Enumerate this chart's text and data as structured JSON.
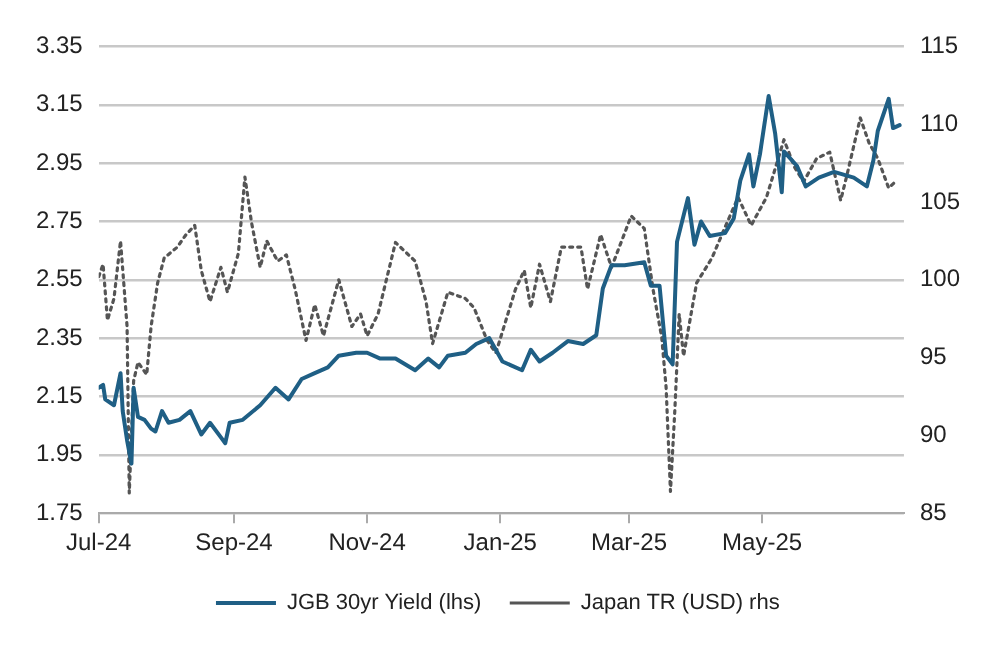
{
  "chart_data": {
    "type": "line",
    "xlim": [
      "2024-07-01",
      "2025-07-05"
    ],
    "xticks": [
      {
        "value": "2024-07-01",
        "label": "Jul-24"
      },
      {
        "value": "2024-09-01",
        "label": "Sep-24"
      },
      {
        "value": "2024-11-01",
        "label": "Nov-24"
      },
      {
        "value": "2025-01-01",
        "label": "Jan-25"
      },
      {
        "value": "2025-03-01",
        "label": "Mar-25"
      },
      {
        "value": "2025-05-01",
        "label": "May-25"
      }
    ],
    "ylim": [
      1.75,
      3.35
    ],
    "yticks": [
      1.75,
      1.95,
      2.15,
      2.35,
      2.55,
      2.75,
      2.95,
      3.15,
      3.35
    ],
    "y2lim": [
      85,
      115
    ],
    "y2ticks": [
      85,
      90,
      95,
      100,
      105,
      110,
      115
    ],
    "grid": "y",
    "legend": "bottom",
    "marker": "none",
    "series": [
      {
        "name": "JGB 30yr Yield (lhs)",
        "color": "#1f5f85",
        "line_style": "solid",
        "x": [
          "2024-07-01",
          "2024-07-03",
          "2024-07-04",
          "2024-07-08",
          "2024-07-11",
          "2024-07-12",
          "2024-07-14",
          "2024-07-16",
          "2024-07-17",
          "2024-07-19",
          "2024-07-22",
          "2024-07-25",
          "2024-07-27",
          "2024-07-30",
          "2024-08-02",
          "2024-08-07",
          "2024-08-12",
          "2024-08-17",
          "2024-08-21",
          "2024-08-26",
          "2024-08-28",
          "2024-08-30",
          "2024-09-05",
          "2024-09-13",
          "2024-09-20",
          "2024-09-26",
          "2024-10-02",
          "2024-10-08",
          "2024-10-14",
          "2024-10-19",
          "2024-10-27",
          "2024-11-01",
          "2024-11-07",
          "2024-11-14",
          "2024-11-23",
          "2024-11-29",
          "2024-12-04",
          "2024-12-08",
          "2024-12-16",
          "2024-12-21",
          "2024-12-27",
          "2025-01-02",
          "2025-01-11",
          "2025-01-15",
          "2025-01-19",
          "2025-01-25",
          "2025-02-01",
          "2025-02-08",
          "2025-02-14",
          "2025-02-17",
          "2025-02-21",
          "2025-02-27",
          "2025-03-08",
          "2025-03-11",
          "2025-03-15",
          "2025-03-18",
          "2025-03-21",
          "2025-03-23",
          "2025-03-28",
          "2025-03-31",
          "2025-04-03",
          "2025-04-07",
          "2025-04-14",
          "2025-04-18",
          "2025-04-21",
          "2025-04-25",
          "2025-04-27",
          "2025-04-30",
          "2025-05-04",
          "2025-05-07",
          "2025-05-10",
          "2025-05-11",
          "2025-05-17",
          "2025-05-21",
          "2025-05-27",
          "2025-06-03",
          "2025-06-12",
          "2025-06-18",
          "2025-06-21",
          "2025-06-23",
          "2025-06-28",
          "2025-06-30",
          "2025-07-03"
        ],
        "values": [
          2.18,
          2.19,
          2.14,
          2.12,
          2.23,
          2.1,
          2.0,
          1.92,
          2.18,
          2.08,
          2.07,
          2.04,
          2.03,
          2.1,
          2.06,
          2.07,
          2.1,
          2.02,
          2.06,
          2.01,
          1.99,
          2.06,
          2.07,
          2.12,
          2.18,
          2.14,
          2.21,
          2.23,
          2.25,
          2.29,
          2.3,
          2.3,
          2.28,
          2.28,
          2.24,
          2.28,
          2.25,
          2.29,
          2.3,
          2.33,
          2.35,
          2.27,
          2.24,
          2.31,
          2.27,
          2.3,
          2.34,
          2.33,
          2.36,
          2.52,
          2.6,
          2.6,
          2.61,
          2.53,
          2.53,
          2.29,
          2.26,
          2.68,
          2.83,
          2.67,
          2.75,
          2.7,
          2.71,
          2.76,
          2.89,
          2.98,
          2.87,
          2.98,
          3.18,
          3.05,
          2.85,
          2.99,
          2.94,
          2.87,
          2.9,
          2.92,
          2.9,
          2.87,
          2.96,
          3.06,
          3.17,
          3.07,
          3.08
        ]
      },
      {
        "name": "Japan TR (USD) rhs",
        "color": "#555555",
        "line_style": "dotted",
        "axis": "y2",
        "x": [
          "2024-07-01",
          "2024-07-03",
          "2024-07-05",
          "2024-07-08",
          "2024-07-11",
          "2024-07-14",
          "2024-07-15",
          "2024-07-17",
          "2024-07-19",
          "2024-07-23",
          "2024-07-25",
          "2024-07-28",
          "2024-07-31",
          "2024-08-06",
          "2024-08-10",
          "2024-08-14",
          "2024-08-17",
          "2024-08-21",
          "2024-08-26",
          "2024-08-29",
          "2024-09-03",
          "2024-09-06",
          "2024-09-09",
          "2024-09-13",
          "2024-09-16",
          "2024-09-21",
          "2024-09-25",
          "2024-09-29",
          "2024-10-04",
          "2024-10-08",
          "2024-10-12",
          "2024-10-19",
          "2024-10-25",
          "2024-10-29",
          "2024-11-01",
          "2024-11-06",
          "2024-11-14",
          "2024-11-23",
          "2024-11-28",
          "2024-12-01",
          "2024-12-08",
          "2024-12-16",
          "2024-12-20",
          "2024-12-26",
          "2024-12-30",
          "2025-01-08",
          "2025-01-12",
          "2025-01-15",
          "2025-01-19",
          "2025-01-24",
          "2025-01-29",
          "2025-02-07",
          "2025-02-10",
          "2025-02-16",
          "2025-02-21",
          "2025-03-02",
          "2025-03-08",
          "2025-03-12",
          "2025-03-16",
          "2025-03-18",
          "2025-03-20",
          "2025-03-22",
          "2025-03-24",
          "2025-03-26",
          "2025-04-01",
          "2025-04-08",
          "2025-04-15",
          "2025-04-20",
          "2025-04-26",
          "2025-05-03",
          "2025-05-11",
          "2025-05-16",
          "2025-05-20",
          "2025-05-26",
          "2025-06-01",
          "2025-06-06",
          "2025-06-09",
          "2025-06-15",
          "2025-06-19",
          "2025-06-23",
          "2025-06-28",
          "2025-07-01"
        ],
        "values": [
          100.2,
          101.0,
          97.4,
          98.8,
          102.5,
          97.0,
          86.3,
          93.5,
          94.7,
          93.9,
          97.0,
          99.8,
          101.4,
          102.1,
          102.9,
          103.5,
          100.6,
          98.6,
          100.8,
          99.2,
          101.7,
          106.6,
          103.7,
          100.8,
          102.5,
          101.2,
          101.6,
          99.4,
          96.1,
          98.4,
          96.4,
          100.0,
          97.0,
          97.8,
          96.4,
          97.8,
          102.4,
          101.2,
          98.6,
          95.9,
          99.2,
          98.8,
          98.2,
          96.1,
          95.3,
          99.4,
          100.6,
          98.2,
          101.0,
          98.6,
          102.1,
          102.1,
          99.4,
          102.9,
          100.8,
          104.1,
          103.3,
          99.4,
          96.3,
          93.1,
          86.4,
          91.6,
          97.8,
          95.1,
          99.8,
          101.4,
          103.7,
          105.3,
          103.5,
          105.3,
          109.0,
          107.2,
          106.3,
          107.8,
          108.2,
          105.1,
          106.8,
          110.4,
          108.8,
          107.8,
          105.9,
          106.3
        ]
      }
    ]
  }
}
